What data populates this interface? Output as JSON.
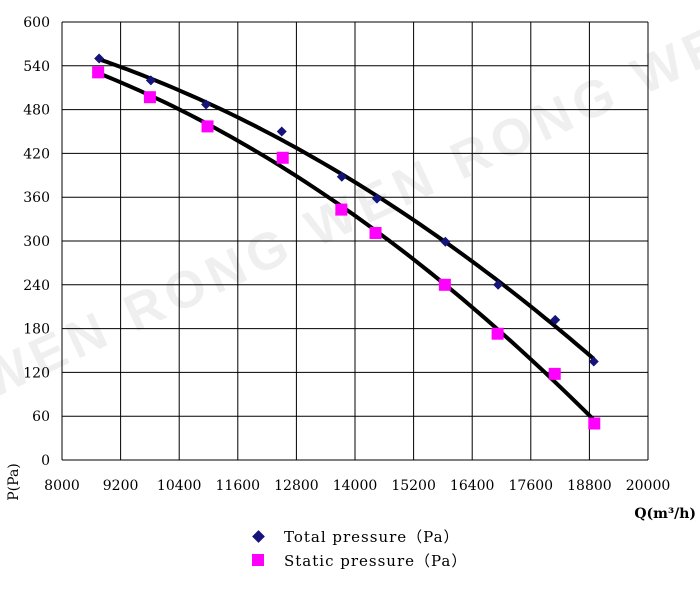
{
  "chart_data": {
    "type": "scatter",
    "title": "",
    "xlabel": "Q(m³/h)",
    "ylabel": "P(Pa)",
    "xlim": [
      8000,
      20000
    ],
    "ylim": [
      0,
      600
    ],
    "x_ticks": [
      8000,
      9200,
      10400,
      11600,
      12800,
      14000,
      15200,
      16400,
      17600,
      18800,
      20000
    ],
    "y_ticks": [
      0,
      60,
      120,
      180,
      240,
      300,
      360,
      420,
      480,
      540,
      600
    ],
    "grid": true,
    "legend_position": "bottom",
    "watermark": "WEN RONG WEN RONG WEN",
    "series": [
      {
        "name": "Total pressure（Pa）",
        "marker": "diamond",
        "color": "#14147a",
        "trendline": true,
        "x": [
          8760,
          9820,
          10950,
          12500,
          13730,
          14450,
          15850,
          16930,
          18100,
          18890
        ],
        "y": [
          550,
          520,
          487,
          450,
          388,
          358,
          299,
          240,
          192,
          135
        ]
      },
      {
        "name": "Static pressure（Pa）",
        "marker": "square",
        "color": "#ff00ff",
        "trendline": true,
        "x": [
          8740,
          9800,
          10980,
          12520,
          13720,
          14420,
          15840,
          16920,
          18090,
          18900
        ],
        "y": [
          531,
          497,
          457,
          414,
          343,
          311,
          240,
          173,
          118,
          50
        ]
      }
    ]
  }
}
